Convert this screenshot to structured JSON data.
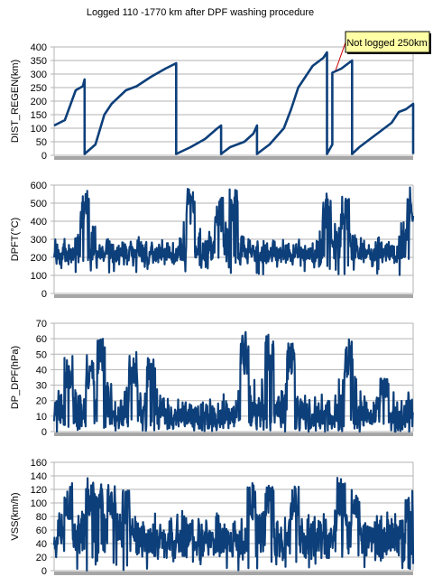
{
  "title": "Logged 110 -1770 km after DPF washing procedure",
  "annotation": {
    "text": "Not logged 250km"
  },
  "colors": {
    "series": "#0d3f7a",
    "grid": "#b3b3b3",
    "axis_bar": "#a6a6a6",
    "callout_fill": "#ffffa6",
    "callout_line": "#cc0000"
  },
  "chart_data": [
    {
      "type": "line",
      "ylabel": "DIST_REGEN(km)",
      "ylim": [
        0,
        400
      ],
      "yticks": [
        0,
        50,
        100,
        150,
        200,
        250,
        300,
        350,
        400
      ],
      "grid": true,
      "x": [
        0,
        0.03,
        0.06,
        0.08,
        0.1,
        0.125,
        0.14,
        0.15,
        0.16,
        0.2,
        0.205,
        0.22,
        0.26,
        0.3,
        0.34,
        0.38,
        0.41,
        0.42,
        0.44,
        0.46,
        0.48,
        0.5,
        0.58,
        0.6,
        0.62,
        0.63,
        0.64,
        0.645,
        0.65,
        0.66,
        0.67,
        0.7,
        0.72,
        0.74,
        0.76,
        0.78,
        0.8,
        0.8,
        0.81,
        0.82,
        0.83,
        0.825,
        0.84,
        0.84,
        0.85,
        0.87,
        0.875,
        0.9,
        0.95,
        1.0
      ],
      "y": [
        110,
        130,
        240,
        280,
        5,
        40,
        170,
        260,
        280,
        290,
        340,
        335,
        5,
        60,
        110,
        180,
        5,
        30,
        40,
        100,
        5,
        30,
        60,
        110,
        5,
        40,
        170,
        260,
        290,
        320,
        360,
        380,
        5,
        40,
        305,
        320,
        340,
        350,
        5,
        30,
        60,
        100,
        150,
        180,
        190,
        5,
        5,
        5,
        5,
        5
      ],
      "series": [
        {
          "values": [
            [
              0,
              110
            ],
            [
              0.03,
              130
            ],
            [
              0.06,
              240
            ],
            [
              0.08,
              255
            ],
            [
              0.085,
              280
            ]
          ]
        },
        {
          "values": [
            [
              0.085,
              5
            ],
            [
              0.115,
              40
            ],
            [
              0.14,
              150
            ],
            [
              0.16,
              190
            ],
            [
              0.2,
              240
            ],
            [
              0.23,
              255
            ],
            [
              0.27,
              290
            ],
            [
              0.31,
              320
            ],
            [
              0.34,
              340
            ]
          ]
        },
        {
          "values": [
            [
              0.34,
              5
            ],
            [
              0.38,
              30
            ],
            [
              0.42,
              60
            ],
            [
              0.455,
              100
            ],
            [
              0.465,
              110
            ]
          ]
        },
        {
          "values": [
            [
              0.465,
              5
            ],
            [
              0.49,
              30
            ],
            [
              0.53,
              50
            ],
            [
              0.555,
              80
            ],
            [
              0.565,
              110
            ]
          ]
        },
        {
          "values": [
            [
              0.565,
              5
            ],
            [
              0.6,
              40
            ],
            [
              0.64,
              100
            ],
            [
              0.66,
              170
            ],
            [
              0.68,
              250
            ],
            [
              0.7,
              290
            ],
            [
              0.72,
              330
            ],
            [
              0.75,
              360
            ],
            [
              0.76,
              380
            ]
          ]
        },
        {
          "values": [
            [
              0.76,
              5
            ],
            [
              0.775,
              40
            ]
          ]
        },
        {
          "values": [
            [
              0.775,
              305
            ],
            [
              0.8,
              320
            ],
            [
              0.83,
              350
            ]
          ]
        },
        {
          "values": [
            [
              0.83,
              5
            ],
            [
              0.85,
              30
            ],
            [
              0.88,
              60
            ],
            [
              0.91,
              90
            ],
            [
              0.94,
              120
            ],
            [
              0.96,
              160
            ],
            [
              0.98,
              170
            ],
            [
              1.0,
              190
            ]
          ]
        },
        {
          "values": [
            [
              1.0,
              5
            ]
          ]
        }
      ]
    },
    {
      "type": "line",
      "ylabel": "DPFT(°C)",
      "ylim": [
        0,
        600
      ],
      "yticks": [
        0,
        100,
        200,
        300,
        400,
        500,
        600
      ],
      "grid": true,
      "noise": {
        "base": 210,
        "amp": 120,
        "floor": 100,
        "peaks": [
          [
            0.085,
            580
          ],
          [
            0.38,
            590
          ],
          [
            0.46,
            540
          ],
          [
            0.5,
            580
          ],
          [
            0.76,
            570
          ],
          [
            0.81,
            540
          ],
          [
            0.995,
            590
          ]
        ]
      }
    },
    {
      "type": "line",
      "ylabel": "DP_DPF(hPa)",
      "ylim": [
        0,
        70
      ],
      "yticks": [
        0,
        10,
        20,
        30,
        40,
        50,
        60,
        70
      ],
      "grid": true,
      "noise": {
        "base": 8,
        "amp": 22,
        "floor": 0,
        "peaks": [
          [
            0.04,
            50
          ],
          [
            0.1,
            50
          ],
          [
            0.13,
            60
          ],
          [
            0.22,
            52
          ],
          [
            0.27,
            48
          ],
          [
            0.53,
            65
          ],
          [
            0.6,
            64
          ],
          [
            0.66,
            58
          ],
          [
            0.82,
            64
          ],
          [
            0.92,
            35
          ]
        ]
      }
    },
    {
      "type": "line",
      "ylabel": "VSS(km/h)",
      "ylim": [
        0,
        160
      ],
      "yticks": [
        0,
        20,
        40,
        60,
        80,
        100,
        120,
        140,
        160
      ],
      "grid": true,
      "noise": {
        "base": 40,
        "amp": 60,
        "floor": 0,
        "peaks": [
          [
            0.04,
            130
          ],
          [
            0.1,
            140
          ],
          [
            0.125,
            145
          ],
          [
            0.16,
            130
          ],
          [
            0.2,
            120
          ],
          [
            0.55,
            130
          ],
          [
            0.6,
            128
          ],
          [
            0.67,
            125
          ],
          [
            0.8,
            140
          ],
          [
            0.84,
            122
          ],
          [
            0.99,
            120
          ]
        ]
      }
    }
  ]
}
